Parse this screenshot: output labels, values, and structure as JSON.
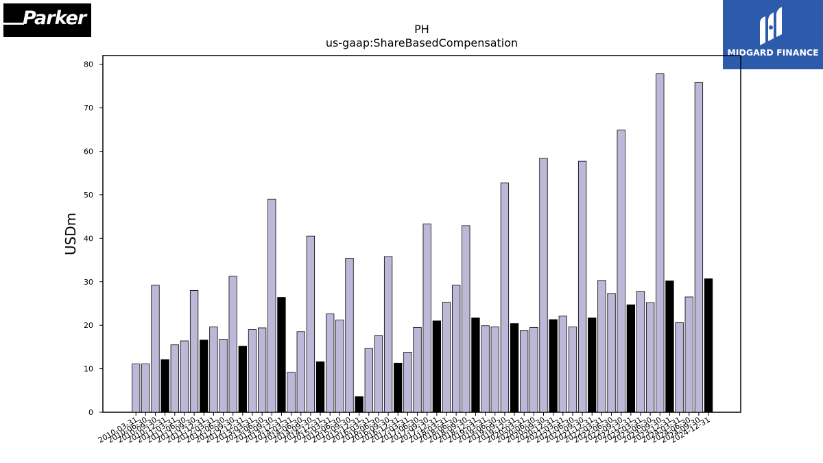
{
  "brand": {
    "left_logo": "Parker",
    "right_logo": "MIDGARD FINANCE"
  },
  "colors": {
    "quarter": "#bdb8d7",
    "annual": "#000000",
    "edge": "#000000"
  },
  "chart_data": {
    "type": "bar",
    "title": "PH",
    "subtitle": "us-gaap:ShareBasedCompensation",
    "xlabel": "",
    "ylabel": "USDm",
    "ylim": [
      0,
      82
    ],
    "yticks": [
      0,
      10,
      20,
      30,
      40,
      50,
      60,
      70,
      80
    ],
    "grid": false,
    "categories": [
      "2010-03-31",
      "2010-06-30",
      "2010-09-30",
      "2010-12-31",
      "2011-03-31",
      "2011-06-30",
      "2011-09-30",
      "2011-12-31",
      "2012-03-31",
      "2012-06-30",
      "2012-09-30",
      "2012-12-31",
      "2013-03-31",
      "2013-06-30",
      "2013-09-30",
      "2013-12-31",
      "2014-03-31",
      "2014-06-30",
      "2014-09-30",
      "2014-12-31",
      "2015-03-31",
      "2015-06-30",
      "2015-09-30",
      "2015-12-31",
      "2016-03-31",
      "2016-06-30",
      "2016-09-30",
      "2016-12-31",
      "2017-03-31",
      "2017-06-30",
      "2017-09-30",
      "2017-12-31",
      "2018-03-31",
      "2018-06-30",
      "2018-09-30",
      "2018-12-31",
      "2019-03-31",
      "2019-06-30",
      "2019-09-30",
      "2019-12-31",
      "2020-03-31",
      "2020-06-30",
      "2020-09-30",
      "2020-12-31",
      "2021-03-31",
      "2021-06-30",
      "2021-09-30",
      "2021-12-31",
      "2022-03-31",
      "2022-06-30",
      "2022-09-30",
      "2022-12-31",
      "2023-03-31",
      "2023-06-30",
      "2023-09-30",
      "2023-12-31",
      "2024-03-31",
      "2024-06-30",
      "2024-09-30",
      "2024-12-31"
    ],
    "values": [
      11.1,
      11.1,
      29.2,
      12.1,
      15.5,
      16.4,
      28.0,
      16.6,
      19.6,
      16.8,
      31.3,
      15.2,
      19.0,
      19.4,
      49.0,
      26.4,
      9.2,
      18.5,
      40.5,
      11.6,
      22.6,
      21.2,
      35.4,
      3.6,
      14.7,
      17.6,
      35.8,
      11.3,
      13.8,
      19.5,
      43.3,
      21.0,
      25.3,
      29.2,
      42.9,
      21.7,
      19.9,
      19.6,
      52.7,
      20.4,
      18.8,
      19.5,
      58.4,
      21.3,
      22.1,
      19.6,
      57.7,
      21.7,
      30.3,
      27.3,
      64.9,
      24.7,
      27.8,
      25.2,
      77.8,
      30.2,
      20.6,
      26.5,
      75.8,
      30.7
    ],
    "highlight": [
      false,
      false,
      false,
      true,
      false,
      false,
      false,
      true,
      false,
      false,
      false,
      true,
      false,
      false,
      false,
      true,
      false,
      false,
      false,
      true,
      false,
      false,
      false,
      true,
      false,
      false,
      false,
      true,
      false,
      false,
      false,
      true,
      false,
      false,
      false,
      true,
      false,
      false,
      false,
      true,
      false,
      false,
      false,
      true,
      false,
      false,
      false,
      true,
      false,
      false,
      false,
      true,
      false,
      false,
      false,
      true,
      false,
      false,
      false,
      true
    ]
  }
}
